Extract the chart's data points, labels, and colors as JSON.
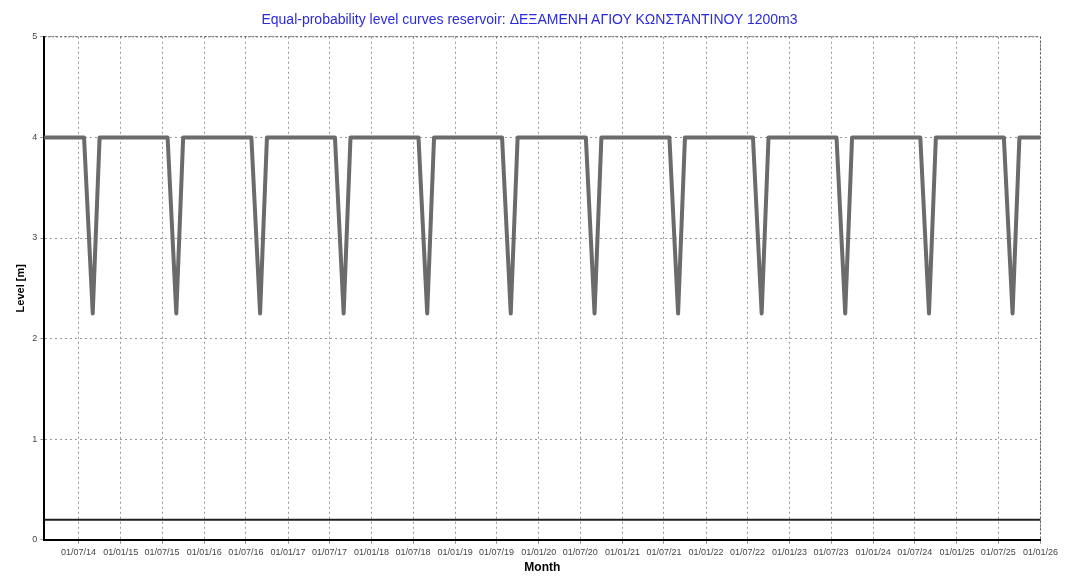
{
  "chart_data": {
    "type": "line",
    "title": "Equal-probability level curves reservoir: ΔΕΞΑΜΕΝΗ ΑΓΙΟΥ ΚΩΝΣΤΑΝΤΙΝΟΥ 1200m3",
    "xlabel": "Month",
    "ylabel": "Level [m]",
    "series": [
      {
        "color": "#6b6b6b",
        "x": [
          "2014-02-01",
          "2014-07-25",
          "2014-09-01",
          "2014-10-01",
          "2015-07-25",
          "2015-09-01",
          "2015-10-01",
          "2016-07-25",
          "2016-09-01",
          "2016-10-01",
          "2017-07-25",
          "2017-09-01",
          "2017-10-01",
          "2018-07-25",
          "2018-09-01",
          "2018-10-01",
          "2019-07-25",
          "2019-09-01",
          "2019-10-01",
          "2020-07-25",
          "2020-09-01",
          "2020-10-01",
          "2021-07-25",
          "2021-09-01",
          "2021-10-01",
          "2022-07-25",
          "2022-09-01",
          "2022-10-01",
          "2023-07-25",
          "2023-09-01",
          "2023-10-01",
          "2024-07-25",
          "2024-09-01",
          "2024-10-01",
          "2025-07-25",
          "2025-09-01",
          "2025-10-01",
          "2026-01-01"
        ],
        "values": [
          4,
          4,
          2.25,
          4,
          4,
          2.25,
          4,
          4,
          2.25,
          4,
          4,
          2.25,
          4,
          4,
          2.25,
          4,
          4,
          2.25,
          4,
          4,
          2.25,
          4,
          4,
          2.25,
          4,
          4,
          2.25,
          4,
          4,
          2.25,
          4,
          4,
          2.25,
          4,
          4,
          2.25,
          4,
          4
        ]
      }
    ],
    "ref_lines": [
      {
        "axis": "y",
        "value": 0.2,
        "color": "#202020"
      }
    ],
    "xlim": [
      "2014-02-01",
      "2026-01-01"
    ],
    "xticks": [
      {
        "value": "2014-07-01",
        "label": "01/07/14"
      },
      {
        "value": "2015-01-01",
        "label": "01/01/15"
      },
      {
        "value": "2015-07-01",
        "label": "01/07/15"
      },
      {
        "value": "2016-01-01",
        "label": "01/01/16"
      },
      {
        "value": "2016-07-01",
        "label": "01/07/16"
      },
      {
        "value": "2017-01-01",
        "label": "01/01/17"
      },
      {
        "value": "2017-07-01",
        "label": "01/07/17"
      },
      {
        "value": "2018-01-01",
        "label": "01/01/18"
      },
      {
        "value": "2018-07-01",
        "label": "01/07/18"
      },
      {
        "value": "2019-01-01",
        "label": "01/01/19"
      },
      {
        "value": "2019-07-01",
        "label": "01/07/19"
      },
      {
        "value": "2020-01-01",
        "label": "01/01/20"
      },
      {
        "value": "2020-07-01",
        "label": "01/07/20"
      },
      {
        "value": "2021-01-01",
        "label": "01/01/21"
      },
      {
        "value": "2021-07-01",
        "label": "01/07/21"
      },
      {
        "value": "2022-01-01",
        "label": "01/01/22"
      },
      {
        "value": "2022-07-01",
        "label": "01/07/22"
      },
      {
        "value": "2023-01-01",
        "label": "01/01/23"
      },
      {
        "value": "2023-07-01",
        "label": "01/07/23"
      },
      {
        "value": "2024-01-01",
        "label": "01/01/24"
      },
      {
        "value": "2024-07-01",
        "label": "01/07/24"
      },
      {
        "value": "2025-01-01",
        "label": "01/01/25"
      },
      {
        "value": "2025-07-01",
        "label": "01/07/25"
      },
      {
        "value": "2026-01-01",
        "label": "01/01/26"
      }
    ],
    "ylim": [
      0,
      5
    ],
    "yticks": [
      0,
      1,
      2,
      3,
      4,
      5
    ],
    "grid": true,
    "line_style": "solid",
    "marker": "none",
    "legend": false
  }
}
